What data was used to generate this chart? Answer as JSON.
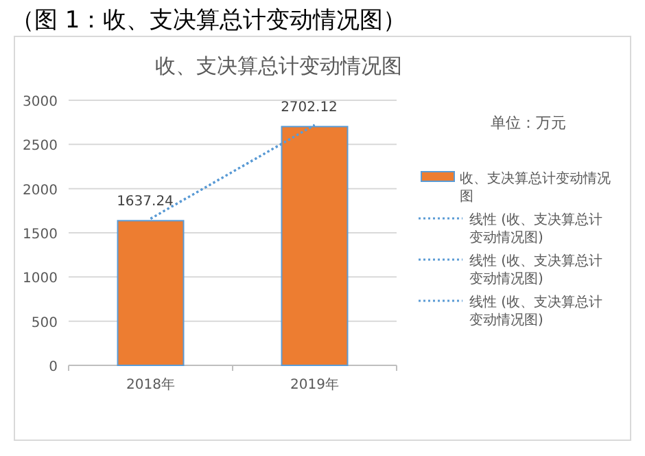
{
  "chart_data": {
    "type": "bar",
    "title": "收、支决算总计变动情况图",
    "annotations": [
      "（图 1：收、支决算总计变动情况图）",
      "单位：万元"
    ],
    "categories": [
      "2018年",
      "2019年"
    ],
    "series": [
      {
        "name": "收、支决算总计变动情况图",
        "color": "#ed7d31",
        "values": [
          1637.24,
          2702.12
        ],
        "value_labels": [
          "1637.24",
          "2702.12"
        ]
      },
      {
        "name": "线性 (收、支决算总计变动情况图)",
        "type": "line",
        "color": "#5b9bd5",
        "line_style": "dotted",
        "values": [
          1660,
          2720
        ]
      },
      {
        "name": "线性 (收、支决算总计变动情况图)",
        "type": "line",
        "color": "#5b9bd5",
        "line_style": "dotted",
        "values": [
          1660,
          2720
        ]
      },
      {
        "name": "线性 (收、支决算总计变动情况图)",
        "type": "line",
        "color": "#5b9bd5",
        "line_style": "dotted",
        "values": [
          1660,
          2720
        ]
      }
    ],
    "ylim": [
      0,
      3000
    ],
    "yticks": [
      0,
      500,
      1000,
      1500,
      2000,
      2500,
      3000
    ],
    "grid": "y",
    "legend": "right"
  }
}
